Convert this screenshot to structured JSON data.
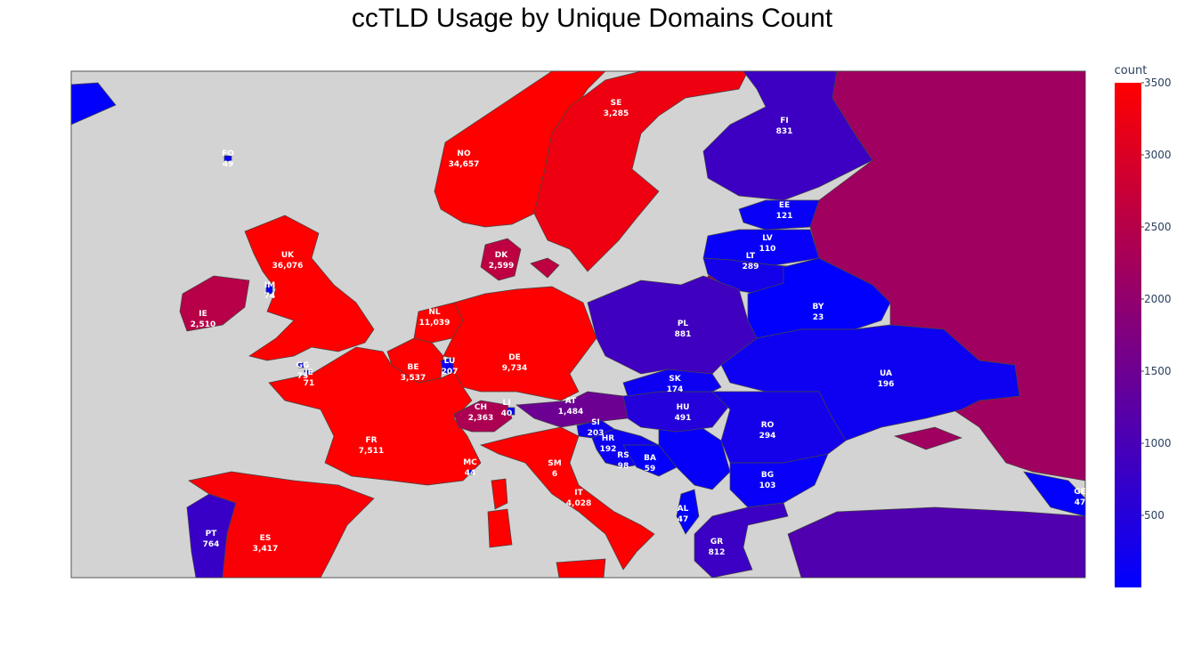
{
  "chart_data": {
    "type": "choropleth",
    "title": "ccTLD Usage by Unique Domains Count",
    "colorbar_title": "count",
    "color_low": "#0000ff",
    "color_high": "#ff0000",
    "zlim": [
      0,
      3500
    ],
    "zticks": [
      500,
      1000,
      1500,
      2000,
      2500,
      3000,
      3500
    ],
    "locations": [
      "FO",
      "NO",
      "SE",
      "FI",
      "EE",
      "LV",
      "LT",
      "BY",
      "UA",
      "PL",
      "DK",
      "UK",
      "IM",
      "IE",
      "NL",
      "BE",
      "LU",
      "DE",
      "GG",
      "JE",
      "FR",
      "CH",
      "LI",
      "AT",
      "SI",
      "HR",
      "RS",
      "BA",
      "HU",
      "SK",
      "RO",
      "BG",
      "MC",
      "SM",
      "IT",
      "AL",
      "GR",
      "PT",
      "ES",
      "GE",
      null,
      null,
      null
    ],
    "values": [
      49,
      34657,
      3285,
      831,
      121,
      110,
      289,
      23,
      196,
      881,
      2599,
      36076,
      74,
      2510,
      11039,
      3537,
      207,
      9734,
      75,
      71,
      7511,
      2363,
      40,
      1484,
      203,
      192,
      98,
      59,
      491,
      174,
      294,
      103,
      44,
      6,
      4028,
      47,
      812,
      764,
      3417,
      47,
      2200,
      1100,
      30
    ],
    "value_labels": [
      "49",
      "34,657",
      "3,285",
      "831",
      "121",
      "110",
      "289",
      "23",
      "196",
      "881",
      "2,599",
      "36,076",
      "74",
      "2,510",
      "11,039",
      "3,537",
      "207",
      "9,734",
      "75",
      "71",
      "7,511",
      "2,363",
      "40",
      "1,484",
      "203",
      "192",
      "98",
      "59",
      "491",
      "174",
      "294",
      "103",
      "44",
      "6",
      "4,028",
      "47",
      "812",
      "764",
      "3,417",
      "47",
      null,
      null,
      null
    ]
  }
}
